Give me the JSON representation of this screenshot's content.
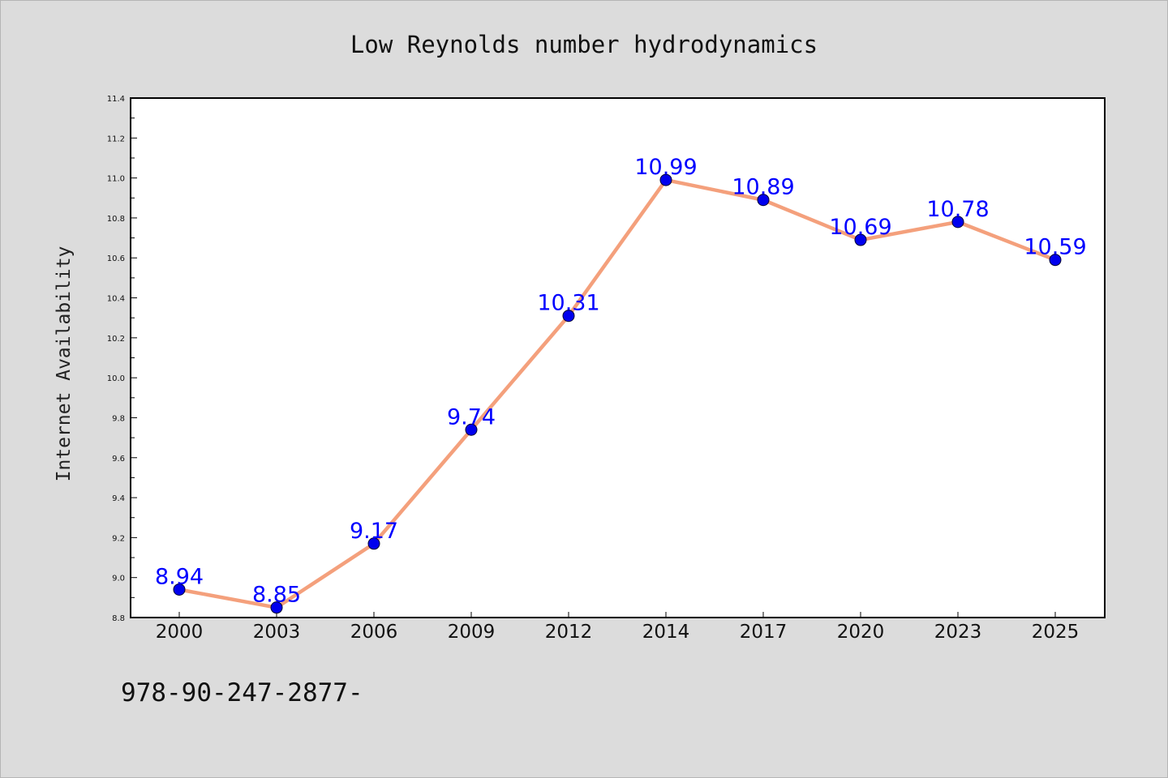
{
  "chart_data": {
    "type": "line",
    "title": "Low Reynolds number hydrodynamics",
    "xlabel": "",
    "ylabel": "Internet Availability",
    "categories": [
      "2000",
      "2003",
      "2006",
      "2009",
      "2012",
      "2014",
      "2017",
      "2020",
      "2023",
      "2025"
    ],
    "series": [
      {
        "values": [
          8.94,
          8.85,
          9.17,
          9.74,
          10.31,
          10.99,
          10.89,
          10.69,
          10.78,
          10.59
        ],
        "labels": [
          "8.94",
          "8.85",
          "9.17",
          "9.74",
          "10.31",
          "10.99",
          "10.89",
          "10.69",
          "10.78",
          "10.59"
        ],
        "line_color": "#f4a07c",
        "marker_color": "#0000ee",
        "label_color": "#0000ff"
      }
    ],
    "ylim": [
      8.8,
      11.4
    ],
    "yticks": [
      "8.8",
      "9.0",
      "9.2",
      "9.4",
      "9.6",
      "9.8",
      "10.0",
      "10.2",
      "10.4",
      "10.6",
      "10.8",
      "11.0",
      "11.2",
      "11.4"
    ],
    "grid": false,
    "legend": "none"
  },
  "footer": {
    "text": "978-90-247-2877-"
  },
  "colors": {
    "background": "#dcdcdc",
    "plot_background": "#ffffff",
    "axes": "#000000"
  }
}
